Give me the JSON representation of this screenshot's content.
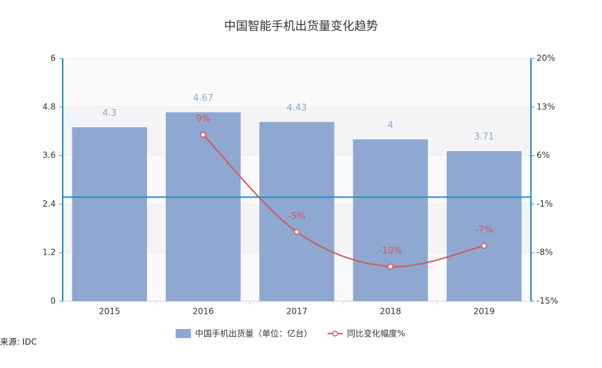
{
  "chart_data": {
    "type": "combo",
    "title": "中国智能手机出货量变化趋势",
    "categories": [
      "2015",
      "2016",
      "2017",
      "2018",
      "2019"
    ],
    "series": [
      {
        "name": "中国手机出货量（单位：亿台）",
        "type": "bar",
        "axis": "y",
        "color": "#8fa8d1",
        "values": [
          4.3,
          4.67,
          4.43,
          4,
          3.71
        ]
      },
      {
        "name": "同比变化幅度%",
        "type": "line",
        "axis": "y2",
        "color": "#d25a56",
        "values": [
          null,
          9,
          -5,
          -10,
          -7
        ],
        "value_labels": [
          null,
          "9%",
          "-5%",
          "-10%",
          "-7%"
        ]
      }
    ],
    "ylim": [
      0,
      6
    ],
    "yticks": [
      0,
      1.2,
      2.4,
      3.6,
      4.8,
      6
    ],
    "y2lim": [
      -15,
      20
    ],
    "y2ticks": [
      {
        "value": -15,
        "label": "-15%"
      },
      {
        "value": -8,
        "label": "-8%"
      },
      {
        "value": -1,
        "label": "-1%"
      },
      {
        "value": 6,
        "label": "6%"
      },
      {
        "value": 13,
        "label": "13%"
      },
      {
        "value": 20,
        "label": "20%"
      }
    ],
    "source": "来源: IDC"
  }
}
